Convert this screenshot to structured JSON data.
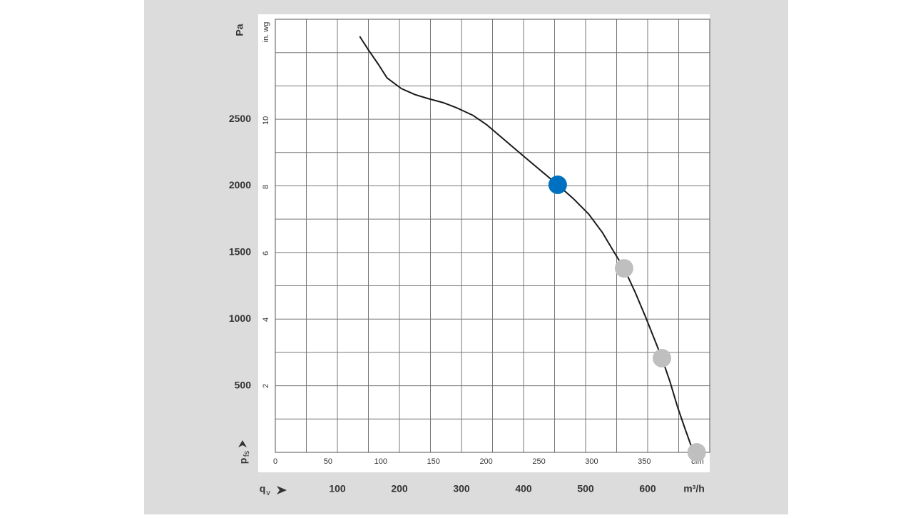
{
  "chart_data": {
    "type": "line",
    "y_label": "Pa",
    "y2_label": "in. wg",
    "x_label": "m³/h",
    "x2_label": "cfm",
    "y_symbol": {
      "base": "p",
      "sub": "fs"
    },
    "x_symbol": {
      "base": "q",
      "sub": "v"
    },
    "xlim": [
      0,
      700
    ],
    "xticks": [
      100,
      200,
      300,
      400,
      500,
      600
    ],
    "xgrid": [
      0,
      50,
      100,
      150,
      200,
      250,
      300,
      350,
      400,
      450,
      500,
      550,
      600,
      650,
      700
    ],
    "x2lim": [
      0,
      412
    ],
    "x2ticks": [
      0,
      50,
      100,
      150,
      200,
      250,
      300,
      350
    ],
    "ylim": [
      0,
      3250
    ],
    "yticks": [
      500,
      1000,
      1500,
      2000,
      2500
    ],
    "ygrid": [
      0,
      250,
      500,
      750,
      1000,
      1250,
      1500,
      1750,
      2000,
      2250,
      2500,
      2750,
      3000,
      3250
    ],
    "y2lim": [
      0,
      13.05
    ],
    "y2ticks": [
      2,
      4,
      6,
      8,
      10
    ],
    "curve": {
      "color": "#1a1a1a",
      "x": [
        136,
        150,
        166,
        180,
        203,
        225,
        246,
        270,
        292,
        318,
        341,
        368,
        395,
        425,
        455,
        480,
        505,
        527,
        547,
        562,
        580,
        597,
        610,
        623,
        636,
        648,
        660,
        671,
        679
      ],
      "values": [
        3121,
        3020,
        2912,
        2810,
        2730,
        2685,
        2655,
        2625,
        2586,
        2530,
        2457,
        2350,
        2243,
        2125,
        2008,
        1905,
        1788,
        1650,
        1494,
        1381,
        1200,
        1012,
        860,
        707,
        530,
        343,
        180,
        37,
        0
      ]
    },
    "points": {
      "x": [
        455,
        562,
        623,
        679
      ],
      "values": [
        2008,
        1381,
        707,
        0
      ],
      "colors": [
        "#0070c0",
        "#bfbfbf",
        "#bfbfbf",
        "#bfbfbf"
      ]
    }
  }
}
